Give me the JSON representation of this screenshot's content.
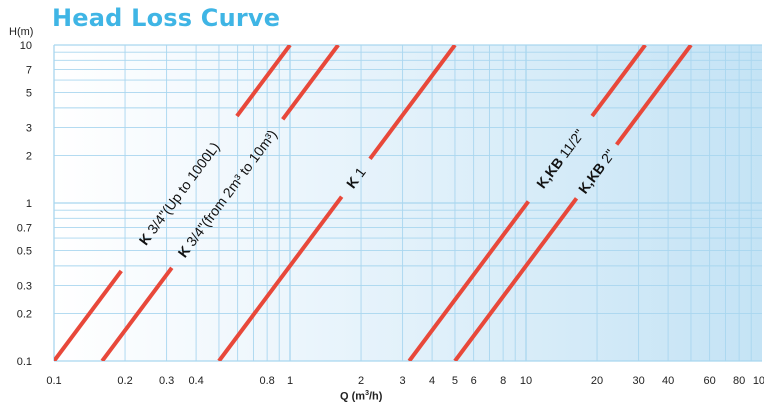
{
  "chart_data": {
    "type": "line",
    "title": "Head Loss Curve",
    "xlabel_main": "Q (m",
    "xlabel_sup": "3",
    "xlabel_end": "/h)",
    "ylabel": "H(m)",
    "x_scale": "log",
    "y_scale": "log",
    "xlim": [
      0.1,
      100
    ],
    "ylim": [
      0.1,
      10
    ],
    "grid": true,
    "x_ticks": [
      0.1,
      0.2,
      0.3,
      0.4,
      0.8,
      1,
      2,
      3,
      4,
      5,
      6,
      8,
      10,
      20,
      30,
      40,
      60,
      80,
      100
    ],
    "x_tick_labels": [
      "0.1",
      "0.2",
      "0.3",
      "0.4",
      "0.8",
      "1",
      "2",
      "3",
      "4",
      "5",
      "6",
      "8",
      "10",
      "20",
      "30",
      "40",
      "60",
      "80",
      "100"
    ],
    "y_ticks": [
      0.1,
      0.2,
      0.3,
      0.5,
      0.7,
      1,
      2,
      3,
      5,
      7,
      10
    ],
    "y_tick_labels": [
      "0.1",
      "0.2",
      "0.3",
      "0.5",
      "0.7",
      "1",
      "2",
      "3",
      "5",
      "7",
      "10"
    ],
    "line_color": "#e8483a",
    "series": [
      {
        "label_bold": "K",
        "label_rest": " 3/4\"(Up to 1000L)",
        "x": [
          0.1,
          1.0
        ],
        "y": [
          0.1,
          10
        ]
      },
      {
        "label_bold": "K",
        "label_rest": " 3/4\"(from 2m³ to 10m³)",
        "x": [
          0.16,
          1.6
        ],
        "y": [
          0.1,
          10
        ]
      },
      {
        "label_bold": "K",
        "label_rest": "  1",
        "x": [
          0.5,
          5.0
        ],
        "y": [
          0.1,
          10
        ]
      },
      {
        "label_bold": "K,KB",
        "label_rest": "  11/2\"",
        "x": [
          3.2,
          32
        ],
        "y": [
          0.1,
          10
        ]
      },
      {
        "label_bold": "K,KB",
        "label_rest": "  2\"",
        "x": [
          5.0,
          50
        ],
        "y": [
          0.1,
          10
        ]
      }
    ]
  }
}
